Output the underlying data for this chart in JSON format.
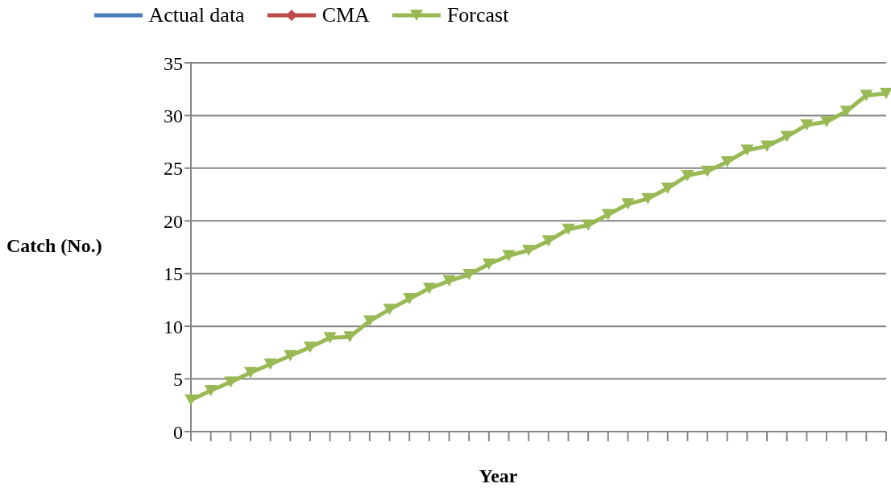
{
  "chart_data": {
    "type": "line",
    "xlabel": "Year",
    "ylabel": "Catch (No.)",
    "categories": [
      null,
      null,
      null,
      null,
      null,
      null,
      null,
      null,
      null,
      null,
      null,
      null,
      null,
      null,
      null,
      null,
      null,
      null,
      null,
      null,
      null,
      null,
      null,
      null,
      null,
      null,
      null,
      null,
      null,
      null,
      null,
      null,
      null,
      null,
      null,
      null
    ],
    "series": [
      {
        "name": "Actual data",
        "color": "#4a7ebb",
        "marker": "none",
        "values": [
          null,
          null,
          null,
          null,
          null,
          null,
          null,
          null,
          null,
          null,
          null,
          null,
          null,
          null,
          null,
          null,
          null,
          null,
          null,
          null,
          null,
          null,
          null,
          null,
          null,
          null,
          null,
          null,
          null,
          null,
          null,
          null,
          null,
          null,
          null,
          null
        ]
      },
      {
        "name": "CMA",
        "color": "#be4b48",
        "marker": "diamond",
        "values": [
          null,
          null,
          null,
          null,
          null,
          null,
          null,
          null,
          null,
          null,
          null,
          null,
          null,
          null,
          null,
          null,
          null,
          null,
          null,
          null,
          null,
          null,
          null,
          null,
          null,
          null,
          null,
          null,
          null,
          null,
          null,
          null,
          null,
          null,
          null,
          null
        ]
      },
      {
        "name": "Forcast",
        "color": "#98b954",
        "marker": "triangle",
        "values": [
          3.0,
          3.9,
          4.7,
          5.6,
          6.4,
          7.2,
          8.0,
          8.9,
          9.0,
          10.5,
          11.6,
          12.6,
          13.6,
          14.3,
          14.9,
          15.9,
          16.7,
          17.2,
          18.1,
          19.2,
          19.6,
          20.6,
          21.6,
          22.1,
          23.1,
          24.3,
          24.7,
          25.6,
          26.7,
          27.1,
          28.0,
          29.1,
          29.4,
          30.4,
          31.9,
          32.1
        ]
      }
    ],
    "ylim": [
      0,
      35
    ],
    "yticks": [
      0,
      5,
      10,
      15,
      20,
      25,
      30,
      35
    ],
    "grid": "y",
    "legend": "top",
    "tick_labels": "y",
    "line_style": "solid"
  }
}
